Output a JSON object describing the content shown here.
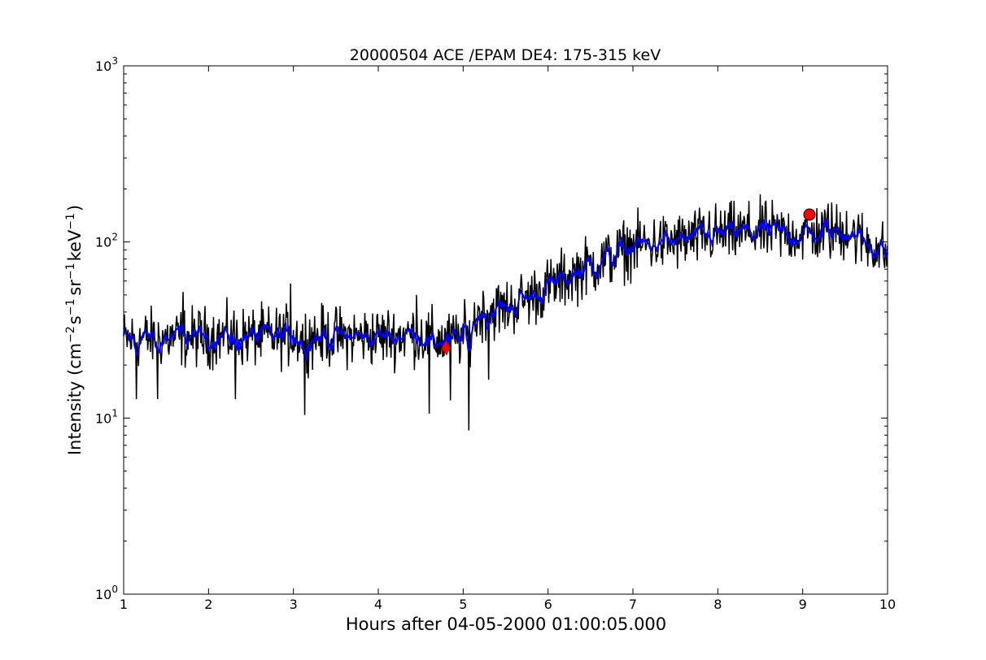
{
  "chart_data": {
    "type": "line",
    "title": "20000504 ACE /EPAM DE4: 175-315 keV",
    "xlabel": "Hours after 04-05-2000 01:00:05.000",
    "ylabel_parts": {
      "main": "Intensity (cm",
      "e1": "−2",
      "s": "s",
      "e2": "−1",
      "sr": "sr",
      "e3": "−1",
      "kev": "keV",
      "e4": "−1",
      "close": ")"
    },
    "xlim": [
      1,
      10
    ],
    "ylim": [
      1,
      1000
    ],
    "yscale": "log",
    "grid": false,
    "x_ticks": [
      "1",
      "2",
      "3",
      "4",
      "5",
      "6",
      "7",
      "8",
      "9",
      "10"
    ],
    "y_ticks": [
      {
        "value": 1,
        "base": "10",
        "exp": "0"
      },
      {
        "value": 10,
        "base": "10",
        "exp": "1"
      },
      {
        "value": 100,
        "base": "10",
        "exp": "2"
      },
      {
        "value": 1000,
        "base": "10",
        "exp": "3"
      }
    ],
    "series": [
      {
        "style": "raw",
        "color": "#000000",
        "trend": [
          [
            1.0,
            28
          ],
          [
            2.0,
            29
          ],
          [
            3.0,
            29
          ],
          [
            4.0,
            29
          ],
          [
            4.4,
            30
          ],
          [
            4.8,
            27
          ],
          [
            5.05,
            30
          ],
          [
            5.2,
            40
          ],
          [
            5.5,
            42
          ],
          [
            6.0,
            55
          ],
          [
            6.4,
            70
          ],
          [
            6.7,
            80
          ],
          [
            7.0,
            95
          ],
          [
            7.5,
            100
          ],
          [
            8.0,
            110
          ],
          [
            8.5,
            115
          ],
          [
            9.0,
            110
          ],
          [
            9.5,
            115
          ],
          [
            9.85,
            95
          ],
          [
            10.0,
            85
          ]
        ],
        "noise": 0.24,
        "min_points": [
          [
            1.15,
            12.8
          ],
          [
            1.4,
            12.8
          ],
          [
            2.32,
            12.8
          ],
          [
            3.13,
            10.4
          ],
          [
            4.6,
            10.6
          ],
          [
            4.85,
            12.6
          ],
          [
            5.07,
            8.5
          ],
          [
            5.3,
            16.5
          ]
        ],
        "max_points": [
          [
            1.7,
            52
          ],
          [
            2.97,
            58
          ],
          [
            4.45,
            50
          ],
          [
            7.9,
            150
          ],
          [
            9.3,
            165
          ],
          [
            9.52,
            150
          ]
        ]
      },
      {
        "style": "smoothed",
        "color": "#0000ff"
      }
    ],
    "markers": [
      {
        "x": 4.8,
        "y": 25,
        "color": "#ff0000",
        "shape": "diamond"
      },
      {
        "x": 9.08,
        "y": 143,
        "color": "#ff0000",
        "shape": "circle"
      }
    ]
  }
}
